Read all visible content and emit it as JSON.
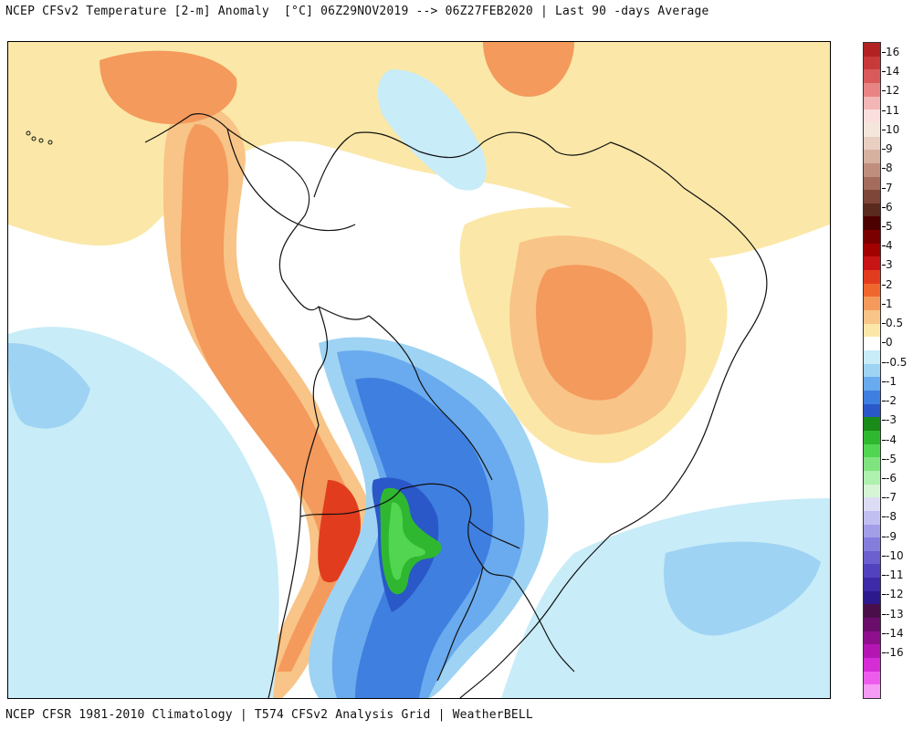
{
  "header": {
    "title": "NCEP CFSv2 Temperature [2-m] Anomaly  [°C] 06Z29NOV2019 --> 06Z27FEB2020 | Last 90 -days Average"
  },
  "footer": {
    "credit": "NCEP CFSR 1981-2010 Climatology | T574 CFSv2 Analysis Grid | WeatherBELL"
  },
  "colorbar": {
    "labels": [
      "16",
      "14",
      "12",
      "11",
      "10",
      "9",
      "8",
      "7",
      "6",
      "5",
      "4",
      "3",
      "2",
      "1",
      "0.5",
      "0",
      "-0.5",
      "-1",
      "-2",
      "-3",
      "-4",
      "-5",
      "-6",
      "-7",
      "-8",
      "-9",
      "-10",
      "-11",
      "-12",
      "-13",
      "-14",
      "-16"
    ],
    "colors": [
      "#b22222",
      "#c83a3a",
      "#d95a5a",
      "#e88484",
      "#f3b6b6",
      "#fbdede",
      "#f5e6dc",
      "#e8cfc1",
      "#d7b1a0",
      "#c08e7d",
      "#a36c5c",
      "#7d4638",
      "#5a2a1e",
      "#4d0000",
      "#7a0000",
      "#a30000",
      "#c81414",
      "#e23c1e",
      "#f0672e",
      "#f49a5c",
      "#f8c487",
      "#fbe8a8",
      "#ffffff",
      "#c8ecf8",
      "#9ed3f3",
      "#6aaaee",
      "#3f7fe0",
      "#2a58c8",
      "#1a8a1a",
      "#2fb82f",
      "#52d652",
      "#7fe47f",
      "#aef0ae",
      "#d5f5d5",
      "#dcdcf5",
      "#c1bff2",
      "#a39ee8",
      "#857ddc",
      "#6c5fcf",
      "#5242be",
      "#3c2aa8",
      "#2c1a8c",
      "#4a0f4a",
      "#6b0d6b",
      "#8e0f8e",
      "#b316b3",
      "#d62cd6",
      "#ee5cee",
      "#f59af5"
    ]
  },
  "map": {
    "description_hidden": false
  }
}
